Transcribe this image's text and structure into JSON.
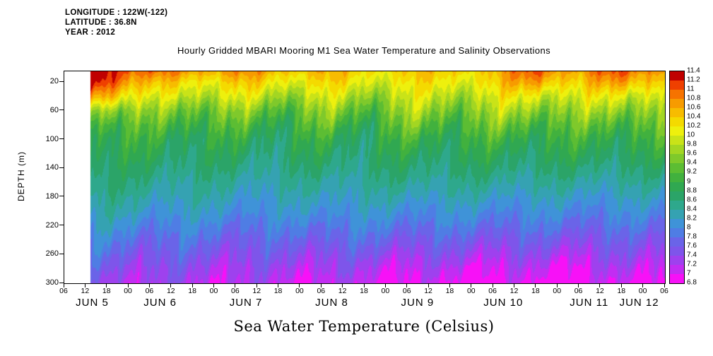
{
  "header": {
    "line1": "LONGITUDE : 122W(-122)",
    "line2": "LATITUDE : 36.8N",
    "line3": "YEAR : 2012"
  },
  "title": "Hourly Gridded MBARI Mooring M1 Sea Water Temperature and Salinity Observations",
  "caption": "Sea Water Temperature (Celsius)",
  "y_axis": {
    "label": "DEPTH (m)",
    "min_depth": 5,
    "max_depth": 300,
    "ticks": [
      20,
      60,
      100,
      140,
      180,
      220,
      260,
      300
    ]
  },
  "x_axis": {
    "span_hours": 168,
    "tick_hours": [
      0,
      6,
      12,
      18,
      24,
      30,
      36,
      42,
      48,
      54,
      60,
      66,
      72,
      78,
      84,
      90,
      96,
      102,
      108,
      114,
      120,
      126,
      132,
      138,
      144,
      150,
      156,
      162,
      168
    ],
    "tick_labels": [
      "06",
      "12",
      "18",
      "00",
      "06",
      "12",
      "18",
      "00",
      "06",
      "12",
      "18",
      "00",
      "06",
      "12",
      "18",
      "00",
      "06",
      "12",
      "18",
      "00",
      "06",
      "12",
      "18",
      "00",
      "06",
      "12",
      "18",
      "00",
      "06"
    ],
    "date_labels": [
      {
        "text": "JUN 5",
        "hour": 8
      },
      {
        "text": "JUN 6",
        "hour": 27
      },
      {
        "text": "JUN 7",
        "hour": 51
      },
      {
        "text": "JUN 8",
        "hour": 75
      },
      {
        "text": "JUN 9",
        "hour": 99
      },
      {
        "text": "JUN 10",
        "hour": 123
      },
      {
        "text": "JUN 11",
        "hour": 147
      },
      {
        "text": "JUN 12",
        "hour": 161
      }
    ]
  },
  "colorbar": {
    "labels": [
      "11.4",
      "11.2",
      "11",
      "10.8",
      "10.6",
      "10.4",
      "10.2",
      "10",
      "9.8",
      "9.6",
      "9.4",
      "9.2",
      "9",
      "8.8",
      "8.6",
      "8.4",
      "8.2",
      "8",
      "7.8",
      "7.6",
      "7.4",
      "7.2",
      "7",
      "6.8"
    ],
    "levels": [
      6.8,
      7.0,
      7.2,
      7.4,
      7.6,
      7.8,
      8.0,
      8.2,
      8.4,
      8.6,
      8.8,
      9.0,
      9.2,
      9.4,
      9.6,
      9.8,
      10.0,
      10.2,
      10.4,
      10.6,
      10.8,
      11.0,
      11.2,
      11.4
    ],
    "colors": [
      "#f711f7",
      "#c22df2",
      "#9e41ee",
      "#7e55ea",
      "#6a64e8",
      "#4f7de4",
      "#3f93d8",
      "#35a2b2",
      "#2ea88c",
      "#2ba468",
      "#30a851",
      "#41b13e",
      "#5cbd33",
      "#7fc92b",
      "#a3d622",
      "#c9e318",
      "#eef00d",
      "#f4da00",
      "#f7bc00",
      "#f79b00",
      "#f67300",
      "#ef4000",
      "#c00000"
    ]
  },
  "chart_data": {
    "type": "heatmap",
    "title": "Hourly Gridded MBARI Mooring M1 Sea Water Temperature and Salinity Observations",
    "variable": "Sea Water Temperature",
    "units": "Celsius",
    "value_range": [
      6.8,
      11.4
    ],
    "contour_interval": 0.2,
    "time_span_hours": 168,
    "time_axis_start": "JUN 5 06:00 2012",
    "time_axis_end": "JUN 12 06:00 2012",
    "data_start_hour": 7.3,
    "grid": {
      "time_hours": [
        0,
        12,
        24,
        36,
        48,
        60,
        72,
        84,
        96,
        108,
        120,
        132,
        144,
        156,
        168
      ],
      "depths_m": [
        5,
        20,
        40,
        60,
        80,
        100,
        120,
        140,
        160,
        180,
        200,
        220,
        240,
        260,
        280,
        300
      ],
      "temperature_c": [
        [
          11.3,
          11.35,
          10.9,
          10.6,
          10.8,
          10.4,
          10.6,
          10.2,
          10.45,
          10.3,
          10.5,
          11.05,
          10.6,
          11.05,
          10.7
        ],
        [
          11.2,
          11.25,
          10.4,
          10.2,
          10.4,
          10.1,
          10.3,
          10.0,
          10.2,
          10.1,
          10.3,
          10.7,
          10.3,
          10.7,
          10.4
        ],
        [
          10.6,
          10.7,
          9.85,
          9.9,
          9.95,
          9.7,
          9.9,
          9.65,
          9.9,
          9.8,
          9.95,
          10.1,
          9.9,
          10.1,
          10.0
        ],
        [
          9.8,
          9.8,
          9.4,
          9.5,
          9.45,
          9.3,
          9.5,
          9.3,
          9.6,
          9.5,
          9.6,
          9.7,
          9.5,
          9.7,
          9.6
        ],
        [
          9.35,
          9.3,
          9.1,
          9.2,
          9.1,
          9.0,
          9.2,
          9.0,
          9.3,
          9.2,
          9.3,
          9.3,
          9.2,
          9.3,
          9.3
        ],
        [
          9.05,
          9.0,
          8.9,
          8.9,
          8.85,
          8.8,
          8.9,
          8.8,
          9.0,
          8.95,
          9.0,
          9.0,
          8.95,
          9.0,
          9.0
        ],
        [
          8.9,
          8.85,
          8.8,
          8.75,
          8.7,
          8.65,
          8.75,
          8.7,
          8.8,
          8.8,
          8.8,
          8.8,
          8.8,
          8.8,
          8.8
        ],
        [
          8.75,
          8.7,
          8.65,
          8.6,
          8.55,
          8.5,
          8.6,
          8.55,
          8.65,
          8.6,
          8.65,
          8.6,
          8.6,
          8.6,
          8.6
        ],
        [
          8.6,
          8.6,
          8.5,
          8.45,
          8.4,
          8.35,
          8.45,
          8.4,
          8.5,
          8.45,
          8.45,
          8.4,
          8.4,
          8.4,
          8.4
        ],
        [
          8.45,
          8.45,
          8.35,
          8.3,
          8.25,
          8.2,
          8.3,
          8.25,
          8.3,
          8.25,
          8.25,
          8.2,
          8.2,
          8.2,
          8.2
        ],
        [
          8.3,
          8.3,
          8.2,
          8.15,
          8.1,
          8.05,
          8.15,
          8.1,
          8.1,
          8.05,
          8.05,
          8.0,
          8.0,
          8.0,
          8.0
        ],
        [
          8.1,
          8.1,
          8.0,
          7.95,
          7.9,
          7.85,
          7.95,
          7.9,
          7.9,
          7.85,
          7.85,
          7.8,
          7.8,
          7.8,
          7.8
        ],
        [
          7.9,
          7.9,
          7.8,
          7.75,
          7.7,
          7.65,
          7.75,
          7.7,
          7.65,
          7.6,
          7.6,
          7.55,
          7.55,
          7.55,
          7.6
        ],
        [
          7.7,
          7.7,
          7.6,
          7.55,
          7.5,
          7.45,
          7.5,
          7.45,
          7.4,
          7.35,
          7.35,
          7.3,
          7.3,
          7.35,
          7.4
        ],
        [
          7.5,
          7.5,
          7.4,
          7.35,
          7.3,
          7.25,
          7.3,
          7.2,
          7.15,
          7.1,
          7.1,
          7.05,
          7.05,
          7.15,
          7.2
        ],
        [
          7.35,
          7.35,
          7.25,
          7.2,
          7.15,
          7.1,
          7.1,
          7.05,
          7.0,
          6.88,
          6.9,
          6.85,
          6.85,
          6.95,
          7.1
        ]
      ]
    }
  }
}
